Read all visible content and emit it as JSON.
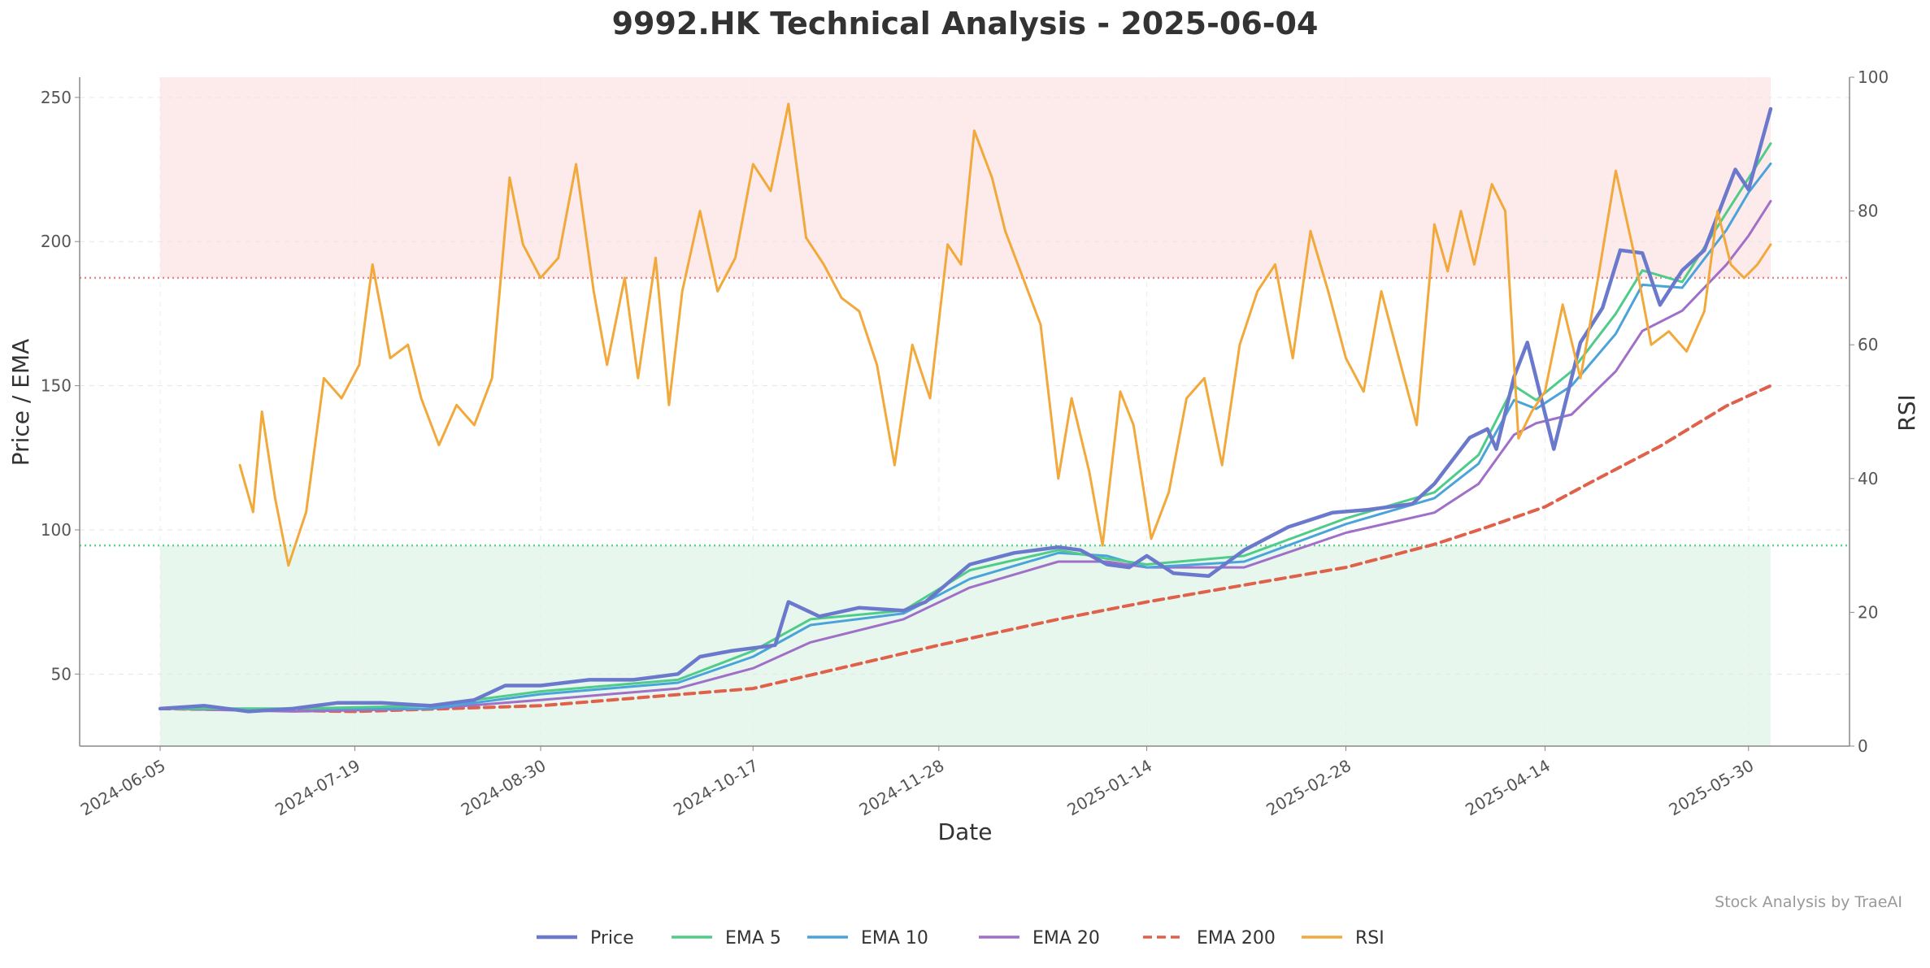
{
  "chart_data": {
    "type": "line",
    "title": "9992.HK Technical Analysis - 2025-06-04",
    "xlabel": "Date",
    "ylabel": "Price / EMA",
    "y2label": "RSI",
    "watermark": "Stock Analysis by TraeAI",
    "x_range": [
      "2024-06-05",
      "2025-06-04"
    ],
    "ylim": [
      25,
      257
    ],
    "y2lim": [
      0,
      100
    ],
    "yticks": [
      50,
      100,
      150,
      200,
      250
    ],
    "y2ticks": [
      0,
      20,
      40,
      60,
      80,
      100
    ],
    "xticks": [
      "2024-06-05",
      "2024-07-19",
      "2024-08-30",
      "2024-10-17",
      "2024-11-28",
      "2025-01-14",
      "2025-02-28",
      "2025-04-14",
      "2025-05-30"
    ],
    "grid": true,
    "legend_position": "bottom",
    "rsi_overbought": 70,
    "rsi_oversold": 30,
    "colors": {
      "price": "#6b79cc",
      "ema5": "#50cc8a",
      "ema10": "#4aa3d9",
      "ema20": "#a06fc8",
      "ema200": "#e0614a",
      "rsi": "#f2a93b",
      "overbought_fill": "#fdeaea",
      "oversold_fill": "#e8f7ee",
      "overbought_line": "#e58a8a",
      "oversold_line": "#5fd08e"
    },
    "series": [
      {
        "key": "price",
        "name": "Price",
        "axis": "left",
        "x": [
          "2024-06-05",
          "2024-06-15",
          "2024-06-25",
          "2024-07-05",
          "2024-07-15",
          "2024-07-25",
          "2024-08-05",
          "2024-08-15",
          "2024-08-22",
          "2024-08-30",
          "2024-09-10",
          "2024-09-20",
          "2024-09-30",
          "2024-10-05",
          "2024-10-12",
          "2024-10-22",
          "2024-10-25",
          "2024-11-01",
          "2024-11-10",
          "2024-11-20",
          "2024-11-25",
          "2024-12-05",
          "2024-12-15",
          "2024-12-25",
          "2024-12-30",
          "2025-01-05",
          "2025-01-10",
          "2025-01-14",
          "2025-01-20",
          "2025-01-28",
          "2025-02-05",
          "2025-02-15",
          "2025-02-25",
          "2025-03-05",
          "2025-03-15",
          "2025-03-20",
          "2025-03-28",
          "2025-04-01",
          "2025-04-03",
          "2025-04-07",
          "2025-04-10",
          "2025-04-16",
          "2025-04-22",
          "2025-04-27",
          "2025-05-01",
          "2025-05-06",
          "2025-05-10",
          "2025-05-15",
          "2025-05-20",
          "2025-05-23",
          "2025-05-27",
          "2025-05-30",
          "2025-06-04"
        ],
        "values": [
          38,
          39,
          37,
          38,
          40,
          40,
          39,
          41,
          46,
          46,
          48,
          48,
          50,
          56,
          58,
          60,
          75,
          70,
          73,
          72,
          75,
          88,
          92,
          94,
          93,
          88,
          87,
          91,
          85,
          84,
          93,
          101,
          106,
          107,
          109,
          116,
          132,
          135,
          128,
          153,
          165,
          128,
          165,
          177,
          197,
          196,
          178,
          190,
          197,
          209,
          225,
          218,
          246
        ]
      },
      {
        "key": "ema5",
        "name": "EMA 5",
        "axis": "left",
        "x": [
          "2024-06-05",
          "2024-07-05",
          "2024-08-05",
          "2024-08-30",
          "2024-09-30",
          "2024-10-17",
          "2024-10-30",
          "2024-11-20",
          "2024-12-05",
          "2024-12-25",
          "2025-01-05",
          "2025-01-14",
          "2025-02-05",
          "2025-02-28",
          "2025-03-20",
          "2025-03-30",
          "2025-04-07",
          "2025-04-12",
          "2025-04-20",
          "2025-04-30",
          "2025-05-06",
          "2025-05-15",
          "2025-05-25",
          "2025-05-30",
          "2025-06-04"
        ],
        "values": [
          38,
          38,
          39,
          44,
          48,
          58,
          69,
          72,
          86,
          93,
          90,
          88,
          91,
          104,
          113,
          126,
          150,
          145,
          155,
          175,
          190,
          186,
          210,
          222,
          234
        ]
      },
      {
        "key": "ema10",
        "name": "EMA 10",
        "axis": "left",
        "x": [
          "2024-06-05",
          "2024-07-05",
          "2024-08-05",
          "2024-08-30",
          "2024-09-30",
          "2024-10-17",
          "2024-10-30",
          "2024-11-20",
          "2024-12-05",
          "2024-12-25",
          "2025-01-05",
          "2025-01-14",
          "2025-02-05",
          "2025-02-28",
          "2025-03-20",
          "2025-03-30",
          "2025-04-07",
          "2025-04-12",
          "2025-04-20",
          "2025-04-30",
          "2025-05-06",
          "2025-05-15",
          "2025-05-25",
          "2025-05-30",
          "2025-06-04"
        ],
        "values": [
          38,
          38,
          38,
          43,
          47,
          56,
          67,
          71,
          83,
          92,
          91,
          87,
          89,
          102,
          111,
          123,
          145,
          142,
          150,
          168,
          185,
          184,
          204,
          217,
          227
        ]
      },
      {
        "key": "ema20",
        "name": "EMA 20",
        "axis": "left",
        "x": [
          "2024-06-05",
          "2024-07-05",
          "2024-08-05",
          "2024-08-30",
          "2024-09-30",
          "2024-10-17",
          "2024-10-30",
          "2024-11-20",
          "2024-12-05",
          "2024-12-25",
          "2025-01-05",
          "2025-01-14",
          "2025-02-05",
          "2025-02-28",
          "2025-03-20",
          "2025-03-30",
          "2025-04-07",
          "2025-04-12",
          "2025-04-20",
          "2025-04-30",
          "2025-05-06",
          "2025-05-15",
          "2025-05-25",
          "2025-05-30",
          "2025-06-04"
        ],
        "values": [
          38,
          37,
          38,
          41,
          45,
          52,
          61,
          69,
          80,
          89,
          89,
          87,
          87,
          99,
          106,
          116,
          133,
          137,
          140,
          155,
          169,
          176,
          192,
          202,
          214
        ]
      },
      {
        "key": "ema200",
        "name": "EMA 200",
        "axis": "left",
        "dashed": true,
        "x": [
          "2024-06-05",
          "2024-07-19",
          "2024-08-30",
          "2024-10-17",
          "2024-11-28",
          "2024-12-25",
          "2025-01-14",
          "2025-02-28",
          "2025-03-20",
          "2025-04-01",
          "2025-04-14",
          "2025-04-25",
          "2025-05-10",
          "2025-05-25",
          "2025-06-04"
        ],
        "values": [
          38,
          37,
          39,
          45,
          60,
          69,
          75,
          87,
          95,
          101,
          108,
          117,
          129,
          143,
          150
        ]
      },
      {
        "key": "rsi",
        "name": "RSI",
        "axis": "right",
        "x": [
          "2024-06-23",
          "2024-06-26",
          "2024-06-28",
          "2024-07-01",
          "2024-07-04",
          "2024-07-08",
          "2024-07-12",
          "2024-07-16",
          "2024-07-20",
          "2024-07-23",
          "2024-07-27",
          "2024-07-31",
          "2024-08-03",
          "2024-08-07",
          "2024-08-11",
          "2024-08-15",
          "2024-08-19",
          "2024-08-23",
          "2024-08-26",
          "2024-08-30",
          "2024-09-03",
          "2024-09-07",
          "2024-09-11",
          "2024-09-14",
          "2024-09-18",
          "2024-09-21",
          "2024-09-25",
          "2024-09-28",
          "2024-10-01",
          "2024-10-05",
          "2024-10-09",
          "2024-10-13",
          "2024-10-17",
          "2024-10-21",
          "2024-10-25",
          "2024-10-29",
          "2024-11-02",
          "2024-11-06",
          "2024-11-10",
          "2024-11-14",
          "2024-11-18",
          "2024-11-22",
          "2024-11-26",
          "2024-11-30",
          "2024-12-03",
          "2024-12-06",
          "2024-12-10",
          "2024-12-13",
          "2024-12-17",
          "2024-12-21",
          "2024-12-25",
          "2024-12-28",
          "2025-01-01",
          "2025-01-04",
          "2025-01-08",
          "2025-01-11",
          "2025-01-15",
          "2025-01-19",
          "2025-01-23",
          "2025-01-27",
          "2025-01-31",
          "2025-02-04",
          "2025-02-08",
          "2025-02-12",
          "2025-02-16",
          "2025-02-20",
          "2025-02-24",
          "2025-02-28",
          "2025-03-04",
          "2025-03-08",
          "2025-03-12",
          "2025-03-16",
          "2025-03-20",
          "2025-03-23",
          "2025-03-26",
          "2025-03-29",
          "2025-04-02",
          "2025-04-05",
          "2025-04-08",
          "2025-04-11",
          "2025-04-14",
          "2025-04-18",
          "2025-04-22",
          "2025-04-26",
          "2025-04-30",
          "2025-05-04",
          "2025-05-08",
          "2025-05-12",
          "2025-05-16",
          "2025-05-20",
          "2025-05-23",
          "2025-05-26",
          "2025-05-29",
          "2025-06-01",
          "2025-06-04"
        ],
        "values": [
          42,
          35,
          50,
          37,
          27,
          35,
          55,
          52,
          57,
          72,
          58,
          60,
          52,
          45,
          51,
          48,
          55,
          85,
          75,
          70,
          73,
          87,
          68,
          57,
          70,
          55,
          73,
          51,
          68,
          80,
          68,
          73,
          87,
          83,
          96,
          76,
          72,
          67,
          65,
          57,
          42,
          60,
          52,
          75,
          72,
          92,
          85,
          77,
          70,
          63,
          40,
          52,
          41,
          30,
          53,
          48,
          31,
          38,
          52,
          55,
          42,
          60,
          68,
          72,
          58,
          77,
          68,
          58,
          53,
          68,
          58,
          48,
          78,
          71,
          80,
          72,
          84,
          80,
          46,
          50,
          53,
          66,
          55,
          70,
          86,
          74,
          60,
          62,
          59,
          65,
          80,
          72,
          70,
          72,
          75
        ]
      }
    ]
  }
}
